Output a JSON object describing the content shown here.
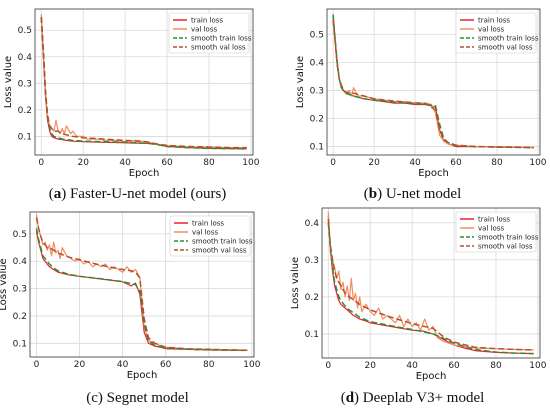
{
  "chart_data": [
    {
      "type": "line",
      "caption": {
        "letter": "a",
        "text": " Faster-U-net model (ours)"
      },
      "xlabel": "Epoch",
      "ylabel": "Loss value",
      "xlim": [
        -3,
        101
      ],
      "ylim": [
        0.03,
        0.58
      ],
      "xticks": [
        0,
        20,
        40,
        60,
        80,
        100
      ],
      "yticks": [
        0.1,
        0.2,
        0.3,
        0.4,
        0.5
      ],
      "grid": true,
      "legend_position": "top-right",
      "series": [
        {
          "name": "train loss",
          "color": "#e8232b",
          "dash": "none",
          "x": [
            0,
            1,
            2,
            3,
            4,
            5,
            6,
            8,
            10,
            12,
            15,
            20,
            25,
            30,
            35,
            40,
            45,
            50,
            55,
            60,
            70,
            80,
            90,
            98
          ],
          "y": [
            0.55,
            0.4,
            0.25,
            0.16,
            0.12,
            0.1,
            0.095,
            0.09,
            0.088,
            0.085,
            0.082,
            0.08,
            0.079,
            0.078,
            0.077,
            0.076,
            0.075,
            0.074,
            0.07,
            0.062,
            0.058,
            0.055,
            0.054,
            0.053
          ]
        },
        {
          "name": "val loss",
          "color": "#f28c5f",
          "dash": "none",
          "x": [
            0,
            1,
            2,
            3,
            4,
            5,
            6,
            7,
            8,
            9,
            10,
            11,
            12,
            14,
            15,
            17,
            20,
            22,
            25,
            28,
            30,
            35,
            40,
            45,
            50,
            55,
            60,
            70,
            80,
            90,
            98
          ],
          "y": [
            0.56,
            0.42,
            0.27,
            0.17,
            0.14,
            0.13,
            0.12,
            0.16,
            0.12,
            0.11,
            0.13,
            0.11,
            0.14,
            0.11,
            0.12,
            0.1,
            0.1,
            0.09,
            0.09,
            0.09,
            0.085,
            0.085,
            0.08,
            0.085,
            0.08,
            0.07,
            0.065,
            0.06,
            0.06,
            0.058,
            0.058
          ]
        },
        {
          "name": "smooth train loss",
          "color": "#2e8b3a",
          "dash": "6,3",
          "x": [
            0,
            1,
            2,
            3,
            4,
            5,
            6,
            8,
            10,
            15,
            20,
            30,
            40,
            50,
            55,
            60,
            70,
            80,
            90,
            98
          ],
          "y": [
            0.55,
            0.41,
            0.26,
            0.17,
            0.13,
            0.11,
            0.1,
            0.095,
            0.09,
            0.085,
            0.082,
            0.08,
            0.078,
            0.075,
            0.07,
            0.062,
            0.058,
            0.055,
            0.054,
            0.053
          ]
        },
        {
          "name": "smooth val loss",
          "color": "#b5502a",
          "dash": "6,3",
          "x": [
            0,
            1,
            2,
            3,
            4,
            5,
            6,
            8,
            10,
            15,
            20,
            30,
            40,
            50,
            55,
            60,
            70,
            80,
            90,
            98
          ],
          "y": [
            0.55,
            0.42,
            0.27,
            0.18,
            0.14,
            0.13,
            0.12,
            0.12,
            0.11,
            0.1,
            0.095,
            0.09,
            0.085,
            0.08,
            0.072,
            0.066,
            0.062,
            0.06,
            0.058,
            0.058
          ]
        }
      ]
    },
    {
      "type": "line",
      "caption": {
        "letter": "b",
        "text": " U-net model"
      },
      "xlabel": "Epoch",
      "ylabel": "Loss value",
      "xlim": [
        -3,
        101
      ],
      "ylim": [
        0.07,
        0.59
      ],
      "xticks": [
        0,
        20,
        40,
        60,
        80,
        100
      ],
      "yticks": [
        0.1,
        0.2,
        0.3,
        0.4,
        0.5
      ],
      "grid": true,
      "legend_position": "top-right",
      "series": [
        {
          "name": "train loss",
          "color": "#e8232b",
          "dash": "none",
          "x": [
            0,
            1,
            2,
            3,
            4,
            5,
            6,
            8,
            10,
            15,
            20,
            25,
            30,
            35,
            40,
            45,
            48,
            50,
            52,
            54,
            56,
            58,
            60,
            70,
            80,
            90,
            98
          ],
          "y": [
            0.57,
            0.48,
            0.4,
            0.34,
            0.31,
            0.3,
            0.29,
            0.285,
            0.28,
            0.27,
            0.265,
            0.26,
            0.255,
            0.255,
            0.25,
            0.25,
            0.245,
            0.24,
            0.16,
            0.12,
            0.11,
            0.105,
            0.1,
            0.1,
            0.098,
            0.097,
            0.096
          ]
        },
        {
          "name": "val loss",
          "color": "#f28c5f",
          "dash": "none",
          "x": [
            0,
            1,
            2,
            3,
            4,
            5,
            6,
            8,
            9,
            10,
            12,
            15,
            20,
            25,
            30,
            35,
            40,
            45,
            48,
            50,
            52,
            54,
            56,
            58,
            60,
            70,
            80,
            90,
            98
          ],
          "y": [
            0.55,
            0.47,
            0.39,
            0.34,
            0.32,
            0.3,
            0.29,
            0.3,
            0.28,
            0.31,
            0.28,
            0.28,
            0.27,
            0.265,
            0.26,
            0.26,
            0.255,
            0.255,
            0.25,
            0.22,
            0.14,
            0.12,
            0.11,
            0.105,
            0.105,
            0.1,
            0.1,
            0.098,
            0.097
          ]
        },
        {
          "name": "smooth train loss",
          "color": "#2e8b3a",
          "dash": "6,3",
          "x": [
            0,
            1,
            2,
            3,
            4,
            5,
            6,
            8,
            10,
            15,
            20,
            30,
            40,
            45,
            50,
            52,
            54,
            56,
            60,
            70,
            80,
            90,
            98
          ],
          "y": [
            0.57,
            0.48,
            0.4,
            0.34,
            0.31,
            0.3,
            0.29,
            0.285,
            0.28,
            0.27,
            0.265,
            0.258,
            0.252,
            0.25,
            0.245,
            0.18,
            0.13,
            0.115,
            0.103,
            0.1,
            0.098,
            0.097,
            0.096
          ]
        },
        {
          "name": "smooth val loss",
          "color": "#b5502a",
          "dash": "6,3",
          "x": [
            0,
            1,
            2,
            3,
            4,
            5,
            6,
            8,
            10,
            15,
            20,
            30,
            40,
            45,
            50,
            52,
            54,
            56,
            60,
            70,
            80,
            90,
            98
          ],
          "y": [
            0.55,
            0.47,
            0.39,
            0.34,
            0.32,
            0.3,
            0.295,
            0.29,
            0.29,
            0.28,
            0.27,
            0.262,
            0.256,
            0.254,
            0.23,
            0.16,
            0.125,
            0.115,
            0.105,
            0.1,
            0.099,
            0.098,
            0.097
          ]
        }
      ]
    },
    {
      "type": "line",
      "caption": {
        "letter": "",
        "text": "(c) Segnet model"
      },
      "xlabel": "Epoch",
      "ylabel": "Loss value",
      "xlim": [
        -3,
        101
      ],
      "ylim": [
        0.05,
        0.58
      ],
      "xticks": [
        0,
        20,
        40,
        60,
        80,
        100
      ],
      "yticks": [
        0.1,
        0.2,
        0.3,
        0.4,
        0.5
      ],
      "grid": true,
      "legend_position": "top-right",
      "series": [
        {
          "name": "train loss",
          "color": "#e8232b",
          "dash": "none",
          "x": [
            0,
            1,
            2,
            3,
            4,
            5,
            6,
            8,
            10,
            15,
            20,
            25,
            30,
            35,
            40,
            44,
            46,
            48,
            50,
            52,
            55,
            58,
            60,
            70,
            80,
            90,
            98
          ],
          "y": [
            0.51,
            0.47,
            0.44,
            0.41,
            0.4,
            0.39,
            0.38,
            0.37,
            0.36,
            0.35,
            0.345,
            0.34,
            0.335,
            0.33,
            0.325,
            0.31,
            0.32,
            0.28,
            0.14,
            0.1,
            0.09,
            0.085,
            0.08,
            0.078,
            0.076,
            0.075,
            0.074
          ]
        },
        {
          "name": "val loss",
          "color": "#f28c5f",
          "dash": "none",
          "x": [
            0,
            1,
            2,
            3,
            4,
            5,
            6,
            7,
            8,
            9,
            10,
            11,
            12,
            14,
            16,
            18,
            20,
            22,
            24,
            26,
            28,
            30,
            32,
            34,
            36,
            38,
            40,
            42,
            44,
            46,
            48,
            50,
            52,
            55,
            58,
            60,
            70,
            80,
            90,
            98
          ],
          "y": [
            0.57,
            0.52,
            0.49,
            0.46,
            0.47,
            0.44,
            0.46,
            0.42,
            0.47,
            0.43,
            0.44,
            0.41,
            0.45,
            0.42,
            0.41,
            0.4,
            0.41,
            0.39,
            0.4,
            0.38,
            0.39,
            0.38,
            0.39,
            0.37,
            0.38,
            0.37,
            0.36,
            0.38,
            0.36,
            0.37,
            0.34,
            0.16,
            0.11,
            0.1,
            0.09,
            0.085,
            0.08,
            0.078,
            0.076,
            0.075
          ]
        },
        {
          "name": "smooth train loss",
          "color": "#2e8b3a",
          "dash": "6,3",
          "x": [
            0,
            1,
            2,
            3,
            4,
            5,
            6,
            8,
            10,
            15,
            20,
            30,
            40,
            44,
            46,
            48,
            50,
            52,
            55,
            60,
            70,
            80,
            90,
            98
          ],
          "y": [
            0.52,
            0.48,
            0.45,
            0.42,
            0.41,
            0.4,
            0.39,
            0.375,
            0.365,
            0.352,
            0.345,
            0.336,
            0.326,
            0.318,
            0.315,
            0.29,
            0.17,
            0.11,
            0.092,
            0.082,
            0.078,
            0.076,
            0.075,
            0.074
          ]
        },
        {
          "name": "smooth val loss",
          "color": "#b5502a",
          "dash": "6,3",
          "x": [
            0,
            1,
            2,
            3,
            4,
            5,
            6,
            8,
            10,
            15,
            20,
            30,
            40,
            44,
            46,
            48,
            50,
            52,
            55,
            60,
            70,
            80,
            90,
            98
          ],
          "y": [
            0.56,
            0.52,
            0.49,
            0.47,
            0.46,
            0.45,
            0.45,
            0.44,
            0.43,
            0.415,
            0.405,
            0.385,
            0.37,
            0.365,
            0.36,
            0.34,
            0.19,
            0.12,
            0.1,
            0.086,
            0.08,
            0.078,
            0.076,
            0.075
          ]
        }
      ]
    },
    {
      "type": "line",
      "caption": {
        "letter": "d",
        "text": " Deeplab V3+ model"
      },
      "xlabel": "Epoch",
      "ylabel": "Loss value",
      "xlim": [
        -3,
        101
      ],
      "ylim": [
        0.035,
        0.44
      ],
      "xticks": [
        0,
        20,
        40,
        60,
        80,
        100
      ],
      "yticks": [
        0.1,
        0.2,
        0.3,
        0.4
      ],
      "grid": true,
      "legend_position": "top-right",
      "series": [
        {
          "name": "train loss",
          "color": "#e8232b",
          "dash": "none",
          "x": [
            0,
            1,
            2,
            3,
            4,
            5,
            6,
            8,
            10,
            12,
            15,
            18,
            20,
            25,
            30,
            35,
            40,
            45,
            50,
            55,
            60,
            65,
            70,
            80,
            90,
            98
          ],
          "y": [
            0.42,
            0.33,
            0.27,
            0.23,
            0.21,
            0.19,
            0.18,
            0.17,
            0.16,
            0.15,
            0.14,
            0.135,
            0.13,
            0.125,
            0.12,
            0.115,
            0.11,
            0.108,
            0.1,
            0.085,
            0.07,
            0.062,
            0.055,
            0.05,
            0.048,
            0.047
          ]
        },
        {
          "name": "val loss",
          "color": "#f28c5f",
          "dash": "none",
          "x": [
            0,
            1,
            2,
            3,
            4,
            5,
            6,
            7,
            8,
            9,
            10,
            11,
            12,
            13,
            14,
            15,
            16,
            18,
            20,
            22,
            24,
            26,
            28,
            30,
            32,
            34,
            36,
            38,
            40,
            42,
            44,
            46,
            48,
            50,
            52,
            55,
            60,
            70,
            80,
            90,
            98
          ],
          "y": [
            0.43,
            0.32,
            0.3,
            0.28,
            0.25,
            0.27,
            0.22,
            0.24,
            0.2,
            0.23,
            0.19,
            0.25,
            0.19,
            0.21,
            0.17,
            0.2,
            0.16,
            0.18,
            0.16,
            0.15,
            0.17,
            0.14,
            0.15,
            0.14,
            0.13,
            0.15,
            0.12,
            0.14,
            0.12,
            0.13,
            0.11,
            0.14,
            0.11,
            0.12,
            0.09,
            0.08,
            0.07,
            0.062,
            0.06,
            0.058,
            0.057
          ]
        },
        {
          "name": "smooth train loss",
          "color": "#2e8b3a",
          "dash": "6,3",
          "x": [
            0,
            1,
            2,
            3,
            4,
            5,
            6,
            8,
            10,
            15,
            20,
            30,
            40,
            50,
            55,
            60,
            70,
            80,
            90,
            98
          ],
          "y": [
            0.4,
            0.33,
            0.28,
            0.24,
            0.22,
            0.2,
            0.19,
            0.175,
            0.165,
            0.145,
            0.133,
            0.122,
            0.112,
            0.1,
            0.088,
            0.075,
            0.058,
            0.051,
            0.048,
            0.047
          ]
        },
        {
          "name": "smooth val loss",
          "color": "#b5502a",
          "dash": "6,3",
          "x": [
            0,
            1,
            2,
            3,
            4,
            5,
            6,
            8,
            10,
            15,
            20,
            30,
            40,
            50,
            55,
            60,
            70,
            80,
            90,
            98
          ],
          "y": [
            0.41,
            0.34,
            0.3,
            0.27,
            0.25,
            0.24,
            0.23,
            0.21,
            0.2,
            0.18,
            0.165,
            0.145,
            0.128,
            0.115,
            0.092,
            0.078,
            0.064,
            0.06,
            0.058,
            0.057
          ]
        }
      ]
    }
  ]
}
